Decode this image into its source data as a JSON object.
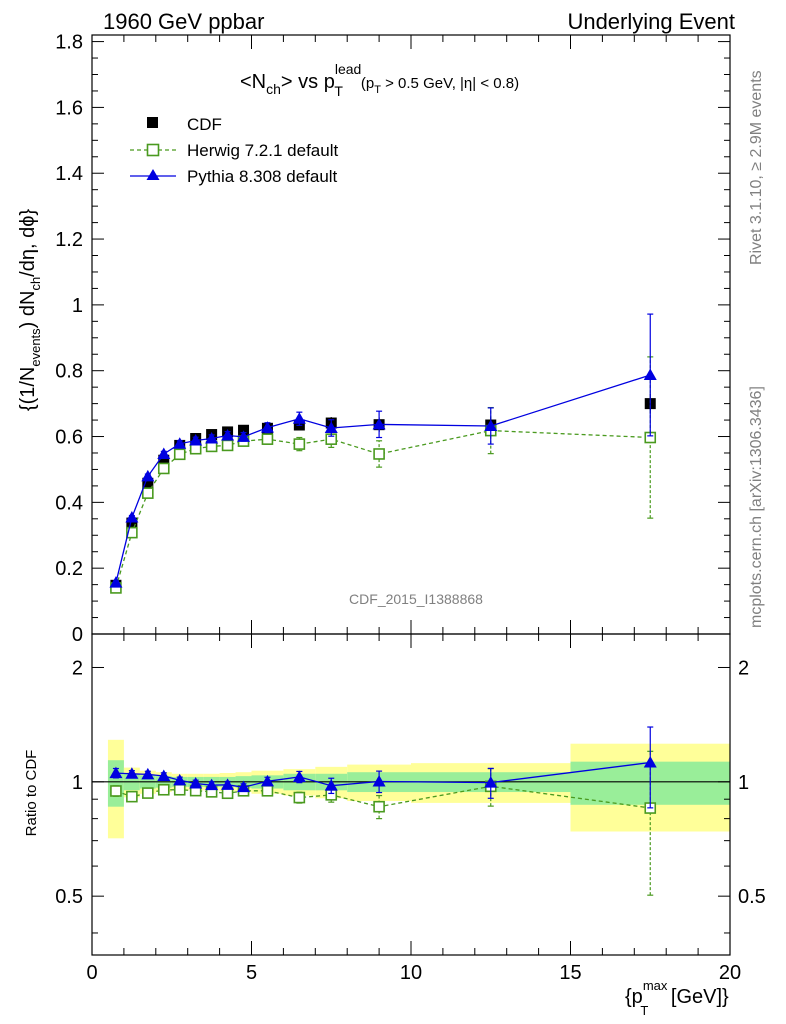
{
  "header": {
    "left": "1960 GeV ppbar",
    "right": "Underlying Event"
  },
  "side_labels": {
    "rivet": "Rivet 3.1.10, ≥ 2.9M events",
    "mcplots": "mcplots.cern.ch [arXiv:1306.3436]"
  },
  "watermark": "CDF_2015_I1388868",
  "title": {
    "pre": "<N",
    "sub_ch": "ch",
    "mid": "> vs p",
    "sup_lead": "lead",
    "sub_T": "T",
    "cut_open": "(p",
    "cut_sub_T": "T",
    "cut_rest": " > 0.5 GeV, |η| < 0.8)"
  },
  "y_axis_label": "{(1/N_events) dN_ch/dη, dϕ}",
  "y_axis_parts": {
    "a": "{(1/N",
    "a_sub": "events",
    "b": ") dN",
    "b_sub": "ch",
    "c": "/dη, dϕ}"
  },
  "x_axis_parts": {
    "a": "{p",
    "a_sup": "max",
    "a_sub": "T",
    "b": " [GeV]}"
  },
  "ratio_label": "Ratio to CDF",
  "legend": [
    {
      "label": "CDF",
      "color": "#000000",
      "marker": "square-filled"
    },
    {
      "label": "Herwig 7.2.1 default",
      "color": "#4a9a1f",
      "marker": "square-open-dashed"
    },
    {
      "label": "Pythia 8.308 default",
      "color": "#0000e0",
      "marker": "triangle-filled"
    }
  ],
  "colors": {
    "cdf": "#000000",
    "herwig": "#4a9a1f",
    "pythia": "#0000e0",
    "band_inner": "#99ee99",
    "band_outer": "#ffff99",
    "side_text": "#808080"
  },
  "chart_data": {
    "type": "scatter",
    "main": {
      "xlim": [
        0,
        20
      ],
      "ylim": [
        0,
        1.82
      ],
      "x_ticks": [
        "0",
        "5",
        "10",
        "15",
        "20"
      ],
      "y_ticks": [
        "0",
        "0.2",
        "0.4",
        "0.6",
        "0.8",
        "1",
        "1.2",
        "1.4",
        "1.6",
        "1.8"
      ]
    },
    "ratio": {
      "scale": "log",
      "ylim": [
        0.35,
        2.45
      ],
      "y_ticks": [
        "0.5",
        "1",
        "2"
      ]
    },
    "cdf": {
      "x": [
        0.75,
        1.25,
        1.75,
        2.25,
        2.75,
        3.25,
        3.75,
        4.25,
        4.75,
        5.5,
        6.5,
        7.5,
        9,
        12.5,
        17.5
      ],
      "y": [
        0.148,
        0.337,
        0.458,
        0.528,
        0.573,
        0.594,
        0.606,
        0.614,
        0.619,
        0.625,
        0.635,
        0.641,
        0.636,
        0.635,
        0.7
      ],
      "err": [
        0.012,
        0.012,
        0.012,
        0.012,
        0.012,
        0.012,
        0.012,
        0.012,
        0.012,
        0.013,
        0.015,
        0.018,
        0.022,
        0.025,
        0.03
      ],
      "xlo": [
        0.5,
        1,
        1.5,
        2,
        2.5,
        3,
        3.5,
        4,
        4.5,
        5,
        6,
        7,
        8,
        10,
        15
      ],
      "xhi": [
        1,
        1.5,
        2,
        2.5,
        3,
        3.5,
        4,
        4.5,
        5,
        6,
        7,
        8,
        10,
        15,
        20
      ],
      "ratio_band_inner": [
        0.14,
        0.05,
        0.04,
        0.035,
        0.03,
        0.03,
        0.03,
        0.03,
        0.035,
        0.04,
        0.05,
        0.05,
        0.06,
        0.06,
        0.13
      ],
      "ratio_band_outer": [
        0.29,
        0.09,
        0.07,
        0.06,
        0.05,
        0.05,
        0.05,
        0.055,
        0.06,
        0.07,
        0.08,
        0.095,
        0.11,
        0.12,
        0.26
      ]
    },
    "series": [
      {
        "name": "Herwig 7.2.1 default",
        "x": [
          0.75,
          1.25,
          1.75,
          2.25,
          2.75,
          3.25,
          3.75,
          4.25,
          4.75,
          5.5,
          6.5,
          7.5,
          9,
          12.5,
          17.5
        ],
        "y": [
          0.14,
          0.308,
          0.428,
          0.503,
          0.546,
          0.563,
          0.57,
          0.573,
          0.586,
          0.592,
          0.577,
          0.592,
          0.547,
          0.618,
          0.597
        ],
        "err": [
          0.005,
          0.006,
          0.007,
          0.008,
          0.009,
          0.01,
          0.011,
          0.012,
          0.013,
          0.015,
          0.02,
          0.025,
          0.04,
          0.07,
          0.245
        ],
        "ratio": [
          0.946,
          0.914,
          0.934,
          0.953,
          0.953,
          0.948,
          0.941,
          0.933,
          0.947,
          0.947,
          0.909,
          0.924,
          0.86,
          0.973,
          0.853
        ],
        "ratio_err": [
          0.03,
          0.02,
          0.02,
          0.02,
          0.02,
          0.02,
          0.02,
          0.02,
          0.02,
          0.025,
          0.03,
          0.04,
          0.06,
          0.11,
          0.35
        ]
      },
      {
        "name": "Pythia 8.308 default",
        "x": [
          0.75,
          1.25,
          1.75,
          2.25,
          2.75,
          3.25,
          3.75,
          4.25,
          4.75,
          5.5,
          6.5,
          7.5,
          9,
          12.5,
          17.5
        ],
        "y": [
          0.156,
          0.354,
          0.479,
          0.547,
          0.578,
          0.588,
          0.594,
          0.603,
          0.599,
          0.627,
          0.654,
          0.626,
          0.637,
          0.632,
          0.787
        ],
        "err": [
          0.005,
          0.006,
          0.007,
          0.008,
          0.009,
          0.01,
          0.011,
          0.012,
          0.013,
          0.015,
          0.02,
          0.025,
          0.04,
          0.055,
          0.185
        ],
        "ratio": [
          1.054,
          1.05,
          1.046,
          1.036,
          1.009,
          0.99,
          0.98,
          0.982,
          0.968,
          1.003,
          1.03,
          0.977,
          1.002,
          0.995,
          1.124
        ],
        "ratio_err": [
          0.03,
          0.02,
          0.02,
          0.02,
          0.02,
          0.02,
          0.02,
          0.02,
          0.02,
          0.025,
          0.035,
          0.045,
          0.065,
          0.09,
          0.27
        ]
      }
    ]
  }
}
